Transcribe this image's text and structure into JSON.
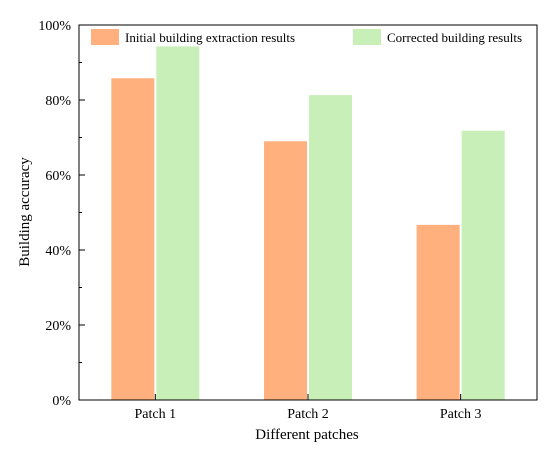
{
  "chart_data": {
    "type": "bar",
    "xlabel": "Different patches",
    "ylabel": "Building accuracy",
    "ylim": [
      0,
      100
    ],
    "y_ticks": [
      0,
      20,
      40,
      60,
      80,
      100
    ],
    "y_tick_labels": [
      "0%",
      "20%",
      "40%",
      "60%",
      "80%",
      "100%"
    ],
    "categories": [
      "Patch 1",
      "Patch 2",
      "Patch 3"
    ],
    "series": [
      {
        "name": "Initial building extraction results",
        "color": "#FFB07C",
        "values": [
          85.8,
          69.0,
          46.7
        ]
      },
      {
        "name": "Corrected building results",
        "color": "#C8EFB8",
        "values": [
          94.3,
          81.3,
          71.8
        ]
      }
    ],
    "legend_position": "top",
    "grid": false
  }
}
